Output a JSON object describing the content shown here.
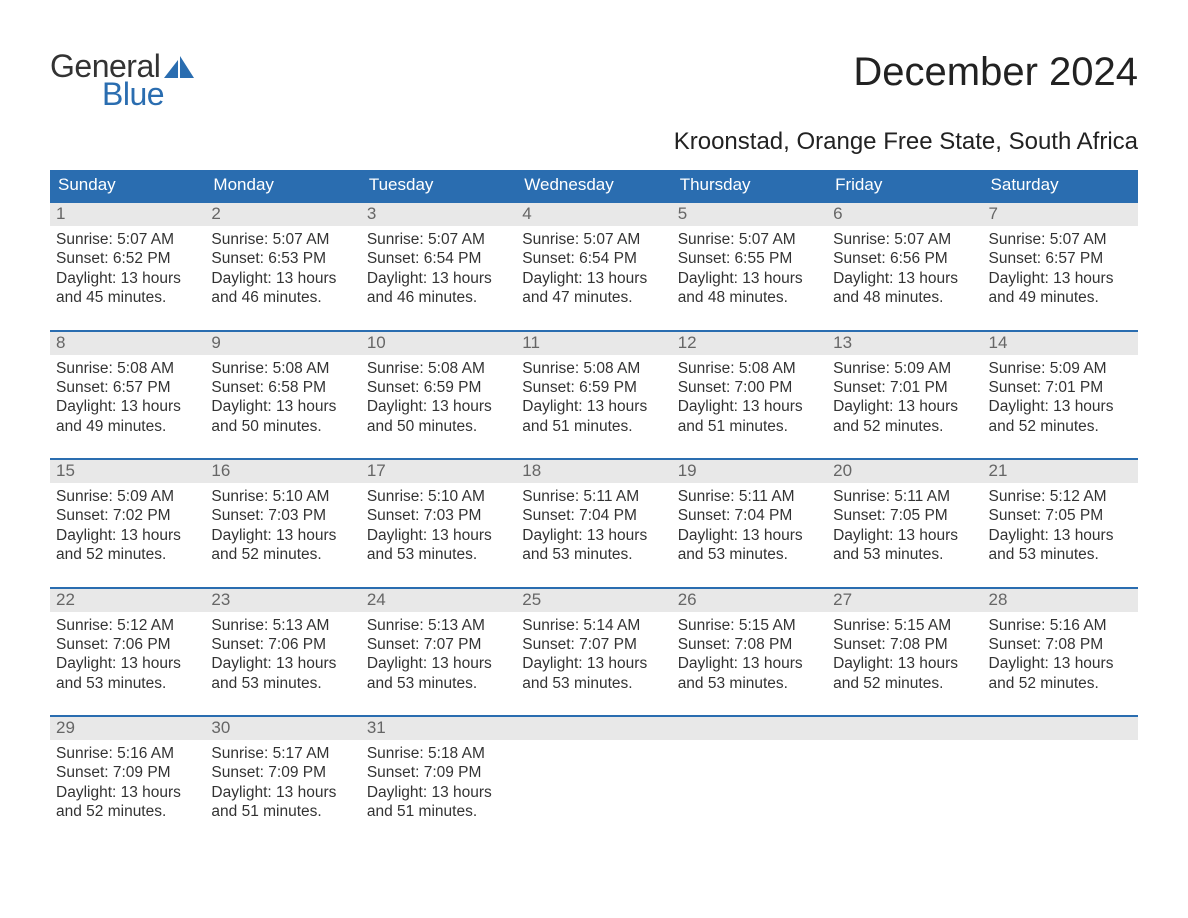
{
  "brand": {
    "word1": "General",
    "word2": "Blue",
    "word1_color": "#333333",
    "word2_color": "#2a6db0",
    "shape_color": "#2a6db0"
  },
  "title": "December 2024",
  "subtitle": "Kroonstad, Orange Free State, South Africa",
  "colors": {
    "header_bg": "#2a6db0",
    "header_text": "#ffffff",
    "week_border": "#2a6db0",
    "daynum_bg": "#e8e8e8",
    "daynum_text": "#666666",
    "body_text": "#333333",
    "page_bg": "#ffffff"
  },
  "fonts": {
    "title_size_pt": 30,
    "subtitle_size_pt": 18,
    "header_size_pt": 13,
    "daynum_size_pt": 13,
    "body_size_pt": 12
  },
  "weekdays": [
    "Sunday",
    "Monday",
    "Tuesday",
    "Wednesday",
    "Thursday",
    "Friday",
    "Saturday"
  ],
  "weeks": [
    [
      {
        "num": "1",
        "sunrise": "5:07 AM",
        "sunset": "6:52 PM",
        "daylight_h": "13",
        "daylight_m": "45"
      },
      {
        "num": "2",
        "sunrise": "5:07 AM",
        "sunset": "6:53 PM",
        "daylight_h": "13",
        "daylight_m": "46"
      },
      {
        "num": "3",
        "sunrise": "5:07 AM",
        "sunset": "6:54 PM",
        "daylight_h": "13",
        "daylight_m": "46"
      },
      {
        "num": "4",
        "sunrise": "5:07 AM",
        "sunset": "6:54 PM",
        "daylight_h": "13",
        "daylight_m": "47"
      },
      {
        "num": "5",
        "sunrise": "5:07 AM",
        "sunset": "6:55 PM",
        "daylight_h": "13",
        "daylight_m": "48"
      },
      {
        "num": "6",
        "sunrise": "5:07 AM",
        "sunset": "6:56 PM",
        "daylight_h": "13",
        "daylight_m": "48"
      },
      {
        "num": "7",
        "sunrise": "5:07 AM",
        "sunset": "6:57 PM",
        "daylight_h": "13",
        "daylight_m": "49"
      }
    ],
    [
      {
        "num": "8",
        "sunrise": "5:08 AM",
        "sunset": "6:57 PM",
        "daylight_h": "13",
        "daylight_m": "49"
      },
      {
        "num": "9",
        "sunrise": "5:08 AM",
        "sunset": "6:58 PM",
        "daylight_h": "13",
        "daylight_m": "50"
      },
      {
        "num": "10",
        "sunrise": "5:08 AM",
        "sunset": "6:59 PM",
        "daylight_h": "13",
        "daylight_m": "50"
      },
      {
        "num": "11",
        "sunrise": "5:08 AM",
        "sunset": "6:59 PM",
        "daylight_h": "13",
        "daylight_m": "51"
      },
      {
        "num": "12",
        "sunrise": "5:08 AM",
        "sunset": "7:00 PM",
        "daylight_h": "13",
        "daylight_m": "51"
      },
      {
        "num": "13",
        "sunrise": "5:09 AM",
        "sunset": "7:01 PM",
        "daylight_h": "13",
        "daylight_m": "52"
      },
      {
        "num": "14",
        "sunrise": "5:09 AM",
        "sunset": "7:01 PM",
        "daylight_h": "13",
        "daylight_m": "52"
      }
    ],
    [
      {
        "num": "15",
        "sunrise": "5:09 AM",
        "sunset": "7:02 PM",
        "daylight_h": "13",
        "daylight_m": "52"
      },
      {
        "num": "16",
        "sunrise": "5:10 AM",
        "sunset": "7:03 PM",
        "daylight_h": "13",
        "daylight_m": "52"
      },
      {
        "num": "17",
        "sunrise": "5:10 AM",
        "sunset": "7:03 PM",
        "daylight_h": "13",
        "daylight_m": "53"
      },
      {
        "num": "18",
        "sunrise": "5:11 AM",
        "sunset": "7:04 PM",
        "daylight_h": "13",
        "daylight_m": "53"
      },
      {
        "num": "19",
        "sunrise": "5:11 AM",
        "sunset": "7:04 PM",
        "daylight_h": "13",
        "daylight_m": "53"
      },
      {
        "num": "20",
        "sunrise": "5:11 AM",
        "sunset": "7:05 PM",
        "daylight_h": "13",
        "daylight_m": "53"
      },
      {
        "num": "21",
        "sunrise": "5:12 AM",
        "sunset": "7:05 PM",
        "daylight_h": "13",
        "daylight_m": "53"
      }
    ],
    [
      {
        "num": "22",
        "sunrise": "5:12 AM",
        "sunset": "7:06 PM",
        "daylight_h": "13",
        "daylight_m": "53"
      },
      {
        "num": "23",
        "sunrise": "5:13 AM",
        "sunset": "7:06 PM",
        "daylight_h": "13",
        "daylight_m": "53"
      },
      {
        "num": "24",
        "sunrise": "5:13 AM",
        "sunset": "7:07 PM",
        "daylight_h": "13",
        "daylight_m": "53"
      },
      {
        "num": "25",
        "sunrise": "5:14 AM",
        "sunset": "7:07 PM",
        "daylight_h": "13",
        "daylight_m": "53"
      },
      {
        "num": "26",
        "sunrise": "5:15 AM",
        "sunset": "7:08 PM",
        "daylight_h": "13",
        "daylight_m": "53"
      },
      {
        "num": "27",
        "sunrise": "5:15 AM",
        "sunset": "7:08 PM",
        "daylight_h": "13",
        "daylight_m": "52"
      },
      {
        "num": "28",
        "sunrise": "5:16 AM",
        "sunset": "7:08 PM",
        "daylight_h": "13",
        "daylight_m": "52"
      }
    ],
    [
      {
        "num": "29",
        "sunrise": "5:16 AM",
        "sunset": "7:09 PM",
        "daylight_h": "13",
        "daylight_m": "52"
      },
      {
        "num": "30",
        "sunrise": "5:17 AM",
        "sunset": "7:09 PM",
        "daylight_h": "13",
        "daylight_m": "51"
      },
      {
        "num": "31",
        "sunrise": "5:18 AM",
        "sunset": "7:09 PM",
        "daylight_h": "13",
        "daylight_m": "51"
      },
      {
        "empty": true
      },
      {
        "empty": true
      },
      {
        "empty": true
      },
      {
        "empty": true
      }
    ]
  ],
  "labels": {
    "sunrise": "Sunrise:",
    "sunset": "Sunset:",
    "daylight_prefix": "Daylight:",
    "hours_word": "hours",
    "and_word": "and",
    "minutes_word": "minutes."
  }
}
